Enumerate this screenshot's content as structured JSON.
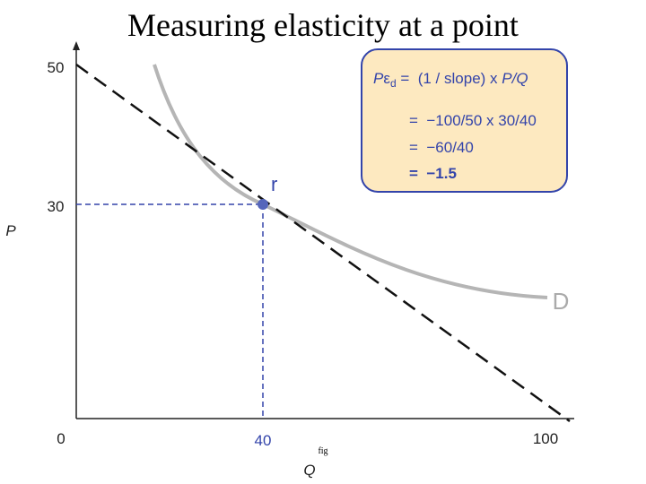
{
  "title": "Measuring elasticity at a point",
  "axes": {
    "y_label": "P",
    "x_label": "Q",
    "y_ticks": [
      "50",
      "30"
    ],
    "origin": "0",
    "x_ticks": [
      "40",
      "100"
    ],
    "note": "fig"
  },
  "point_label": "r",
  "curve_label": "D",
  "formula": {
    "p": "P",
    "epsilon": "ε",
    "sub": "d",
    "rest": " =  (1 / slope) x ",
    "pq": "P/Q"
  },
  "steps": [
    "=  −100/50 x 30/40",
    "=  −60/40",
    "=  −1.5"
  ]
}
